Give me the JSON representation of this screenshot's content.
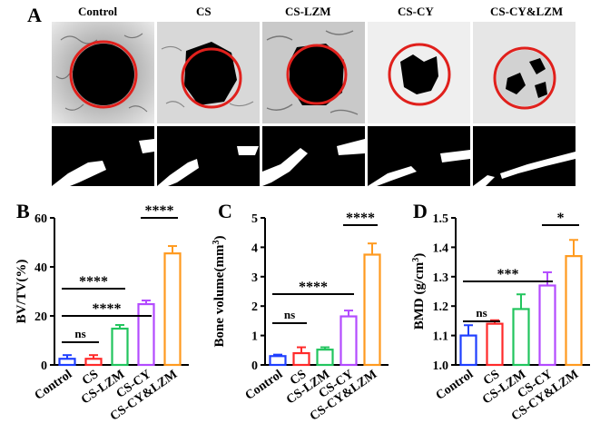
{
  "figure": {
    "panel_letters": {
      "A": "A",
      "B": "B",
      "C": "C",
      "D": "D"
    },
    "groups": [
      "Control",
      "CS",
      "CS-LZM",
      "CS-CY",
      "CS-CY&LZM"
    ],
    "group_colors": [
      "#1f3fff",
      "#ff2a2a",
      "#22c55e",
      "#b34bff",
      "#ff9a1f"
    ]
  },
  "chart_data": [
    {
      "type": "bar",
      "panel": "B",
      "ylabel": "BV/TV(%)",
      "ylim": [
        0,
        60
      ],
      "yticks": [
        "0",
        "20",
        "40",
        "60"
      ],
      "categories": [
        "Control",
        "CS",
        "CS-LZM",
        "CS-CY",
        "CS-CY&LZM"
      ],
      "values": [
        2.5,
        2.5,
        14.8,
        24.8,
        45.5
      ],
      "errors": [
        1.5,
        1.5,
        1.5,
        1.5,
        3.0
      ],
      "significance": [
        {
          "from": 0,
          "to": 1,
          "label": "ns"
        },
        {
          "from": 0,
          "to": 2,
          "label": "****"
        },
        {
          "from": 0,
          "to": 3,
          "label": "****"
        },
        {
          "from": 3,
          "to": 4,
          "label": "****"
        }
      ]
    },
    {
      "type": "bar",
      "panel": "C",
      "ylabel": "Bone volume(mm3)",
      "ylim": [
        0,
        5
      ],
      "yticks": [
        "0",
        "1",
        "2",
        "3",
        "4",
        "5"
      ],
      "categories": [
        "Control",
        "CS",
        "CS-LZM",
        "CS-CY",
        "CS-CY&LZM"
      ],
      "values": [
        0.3,
        0.4,
        0.52,
        1.65,
        3.75
      ],
      "errors": [
        0.05,
        0.2,
        0.08,
        0.2,
        0.38
      ],
      "significance": [
        {
          "from": 0,
          "to": 1,
          "label": "ns"
        },
        {
          "from": 0,
          "to": 3,
          "label": "****"
        },
        {
          "from": 3,
          "to": 4,
          "label": "****"
        }
      ]
    },
    {
      "type": "bar",
      "panel": "D",
      "ylabel": "BMD (g/cm3)",
      "ylim": [
        1.0,
        1.5
      ],
      "yticks": [
        "1.0",
        "1.1",
        "1.2",
        "1.3",
        "1.4",
        "1.5"
      ],
      "categories": [
        "Control",
        "CS",
        "CS-LZM",
        "CS-CY",
        "CS-CY&LZM"
      ],
      "values": [
        1.1,
        1.14,
        1.19,
        1.27,
        1.37
      ],
      "errors": [
        0.035,
        0.012,
        0.05,
        0.045,
        0.055
      ],
      "significance": [
        {
          "from": 0,
          "to": 1,
          "label": "ns"
        },
        {
          "from": 0,
          "to": 3,
          "label": "***"
        },
        {
          "from": 3,
          "to": 4,
          "label": "*"
        }
      ]
    }
  ]
}
